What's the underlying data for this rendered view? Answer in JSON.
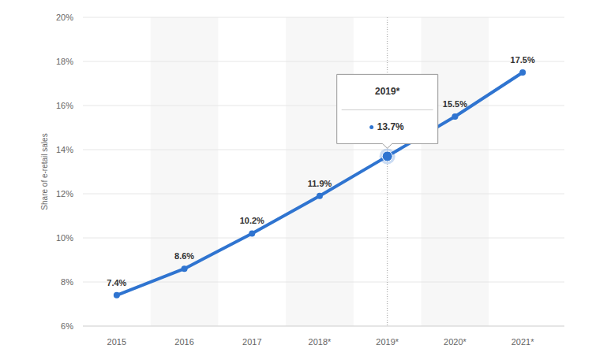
{
  "chart_data": {
    "type": "line",
    "y_label": "Share of e-retail sales",
    "categories": [
      "2015",
      "2016",
      "2017",
      "2018*",
      "2019*",
      "2020*",
      "2021*"
    ],
    "values": [
      7.4,
      8.6,
      10.2,
      11.9,
      13.7,
      15.5,
      17.5
    ],
    "value_labels": [
      "7.4%",
      "8.6%",
      "10.2%",
      "11.9%",
      "13.7%",
      "15.5%",
      "17.5%"
    ],
    "color": "#2f74d0",
    "marker": "circle",
    "ylim": [
      6,
      20
    ],
    "yticks": [
      {
        "value": 6,
        "label": "6%"
      },
      {
        "value": 8,
        "label": "8%"
      },
      {
        "value": 10,
        "label": "10%"
      },
      {
        "value": 12,
        "label": "12%"
      },
      {
        "value": 14,
        "label": "14%"
      },
      {
        "value": 16,
        "label": "16%"
      },
      {
        "value": 18,
        "label": "18%"
      },
      {
        "value": 20,
        "label": "20%"
      }
    ],
    "grid": true,
    "data_labels": true
  }
}
